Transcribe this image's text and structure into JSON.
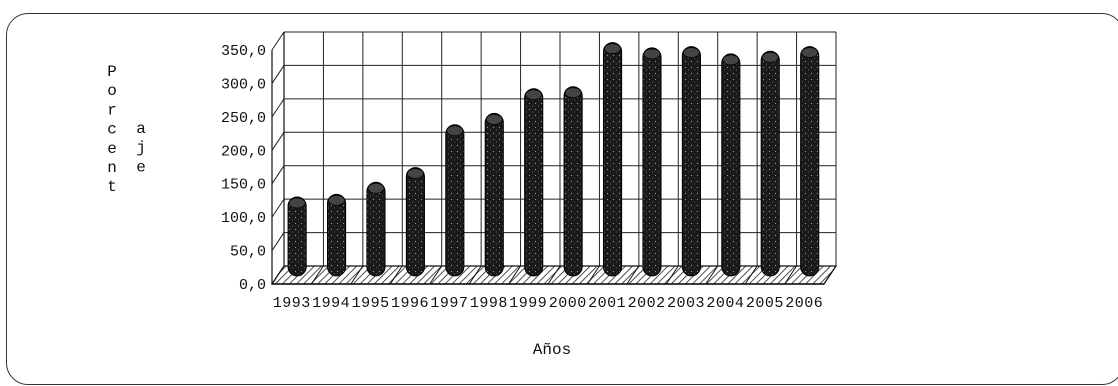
{
  "chart_data": {
    "type": "bar",
    "title": "",
    "xlabel": "Años",
    "ylabel": "Porcentaje",
    "ylabel_col1": [
      "P",
      "o",
      "r",
      "c",
      "e",
      "n",
      "t"
    ],
    "ylabel_col2": [
      "a",
      "j",
      "e"
    ],
    "categories": [
      "1993",
      "1994",
      "1995",
      "1996",
      "1997",
      "1998",
      "1999",
      "2000",
      "2001",
      "2002",
      "2003",
      "2004",
      "2005",
      "2006"
    ],
    "values": [
      118,
      122,
      140,
      162,
      226,
      243,
      280,
      283,
      349,
      341,
      343,
      332,
      336,
      343
    ],
    "ylim": [
      0,
      350
    ],
    "yticks": [
      "0,0",
      "50,0",
      "100,0",
      "150,0",
      "200,0",
      "250,0",
      "300,0",
      "350,0"
    ],
    "grid": true,
    "legend": "none",
    "bar_color": "#1a1a1a"
  }
}
